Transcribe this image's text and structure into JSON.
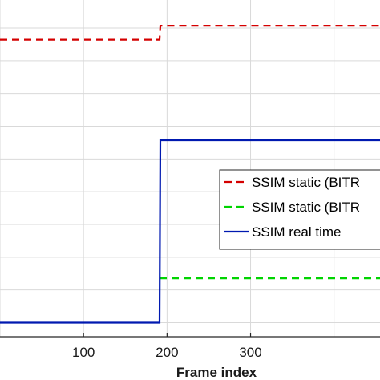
{
  "chart_data": {
    "type": "line",
    "title": "",
    "xlabel": "Frame index",
    "ylabel": "",
    "xlim": [
      0,
      455
    ],
    "ylim": [
      0.856,
      1.0
    ],
    "x_ticks": [
      100,
      200,
      300
    ],
    "x_tick_labels": [
      "100",
      "200",
      "300"
    ],
    "y_gridlines": [
      0.862,
      0.876,
      0.89,
      0.904,
      0.918,
      0.932,
      0.946,
      0.96,
      0.974,
      0.988
    ],
    "grid": true,
    "legend_position": "right",
    "series": [
      {
        "name": "SSIM static (BITR",
        "color": "#d40000",
        "dash": "dashed",
        "x": [
          0,
          191,
          192,
          455
        ],
        "y": [
          0.983,
          0.983,
          0.989,
          0.989
        ]
      },
      {
        "name": "SSIM static (BITR",
        "color": "#00d400",
        "dash": "dashed",
        "x": [
          191,
          455
        ],
        "y": [
          0.881,
          0.881
        ]
      },
      {
        "name": "SSIM real time",
        "color": "#0019b0",
        "dash": "solid",
        "x": [
          0,
          191,
          192,
          455
        ],
        "y": [
          0.862,
          0.862,
          0.94,
          0.94
        ]
      }
    ]
  }
}
